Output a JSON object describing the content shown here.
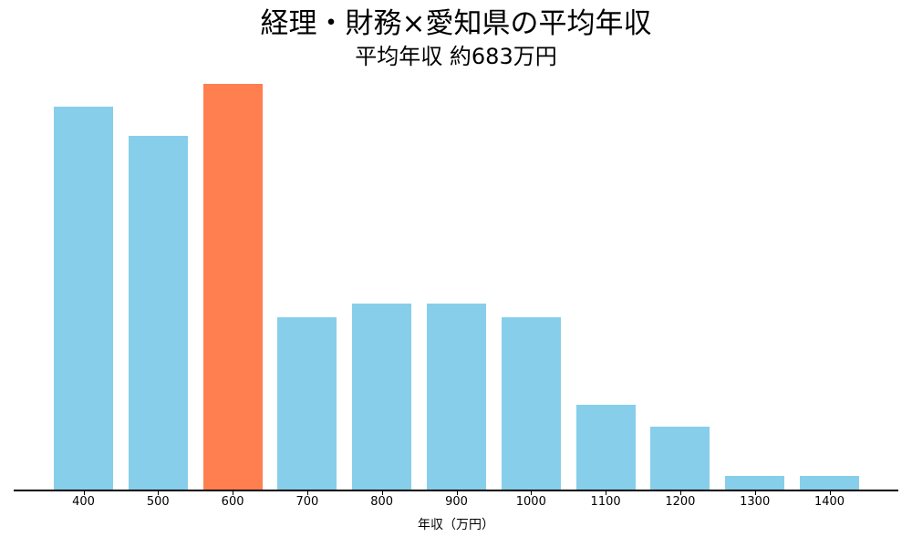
{
  "chart_data": {
    "type": "bar",
    "title": "経理・財務×愛知県の平均年収",
    "subtitle": "平均年収 約683万円",
    "xlabel": "年収（万円）",
    "ylabel": "",
    "categories": [
      "400",
      "500",
      "600",
      "700",
      "800",
      "900",
      "1000",
      "1100",
      "1200",
      "1300",
      "1400"
    ],
    "values": [
      26.5,
      24.5,
      28.1,
      12.0,
      12.9,
      12.9,
      12.0,
      5.9,
      4.4,
      1.0,
      1.0
    ],
    "highlight_index": 2,
    "ylim": [
      0,
      28.1
    ],
    "grid": false,
    "y_axis_visible": false,
    "colors": {
      "default": "#87CEEB",
      "highlight": "#FF7F50"
    }
  }
}
